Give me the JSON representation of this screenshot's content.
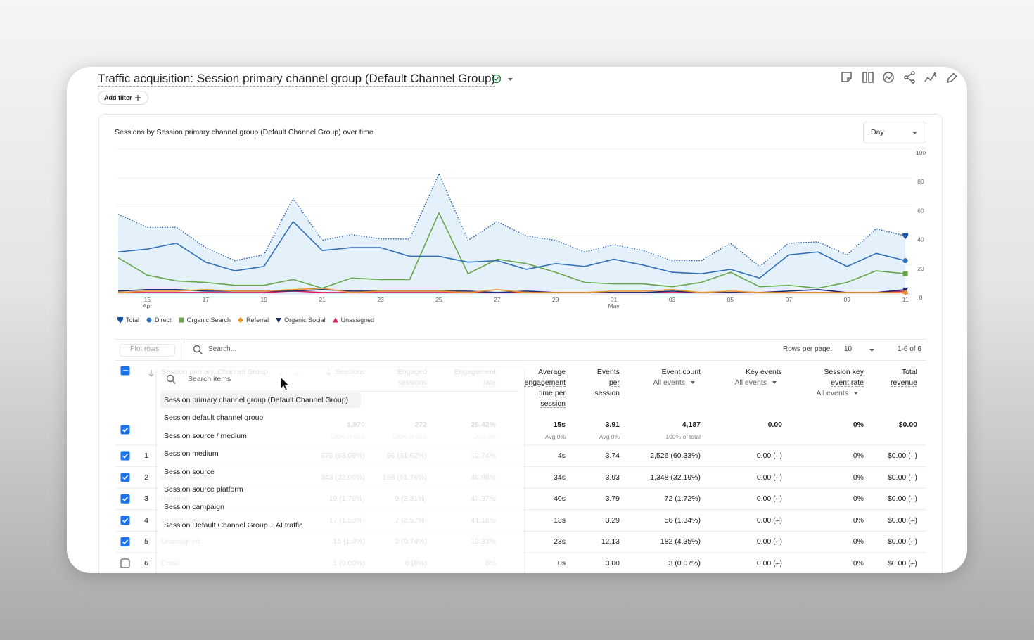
{
  "header": {
    "title": "Traffic acquisition: Session primary channel group (Default Channel Group)",
    "add_filter": "Add filter"
  },
  "period_select": "Day",
  "chart_data": {
    "type": "line",
    "title": "Sessions by Session primary channel group (Default Channel Group) over time",
    "categories": [
      null,
      "15\nApr",
      null,
      "17",
      null,
      "19",
      null,
      "21",
      null,
      "23",
      null,
      "25",
      null,
      "27",
      null,
      "29",
      null,
      "01\nMay",
      null,
      "03",
      null,
      "05",
      null,
      "07",
      null,
      "09",
      null,
      "11"
    ],
    "series": [
      {
        "name": "Total",
        "color": "#1a56a8",
        "line_style": "dotted",
        "area_color": "#dcecf8",
        "marker": "shield",
        "values": [
          55,
          46,
          46,
          32,
          23,
          27,
          66,
          37,
          41,
          38,
          38,
          83,
          37,
          50,
          40,
          37,
          29,
          34,
          30,
          23,
          23,
          35,
          19,
          35,
          36,
          27,
          45,
          40
        ]
      },
      {
        "name": "Direct",
        "color": "#2f6fb7",
        "line_style": "solid",
        "marker": "circle",
        "values": [
          29,
          31,
          35,
          22,
          16,
          19,
          50,
          30,
          32,
          32,
          26,
          26,
          22,
          23,
          17,
          21,
          19,
          24,
          20,
          15,
          14,
          17,
          11,
          27,
          29,
          19,
          28,
          23
        ]
      },
      {
        "name": "Organic Search",
        "color": "#67a54a",
        "line_style": "solid",
        "marker": "square",
        "values": [
          25,
          13,
          9,
          8,
          6,
          6,
          10,
          4,
          11,
          10,
          10,
          56,
          14,
          24,
          21,
          15,
          8,
          7,
          7,
          5,
          8,
          15,
          5,
          6,
          4,
          8,
          16,
          14
        ]
      },
      {
        "name": "Referral",
        "color": "#e8912d",
        "line_style": "solid",
        "marker": "diamond",
        "values": [
          1,
          2,
          2,
          3,
          2,
          2,
          3,
          4,
          1,
          2,
          2,
          2,
          1,
          3,
          1,
          1,
          1,
          2,
          2,
          3,
          1,
          2,
          1,
          1,
          1,
          1,
          1,
          1
        ]
      },
      {
        "name": "Organic Social",
        "color": "#1c2a6b",
        "line_style": "solid",
        "marker": "triangle-down",
        "values": [
          2,
          3,
          3,
          2,
          2,
          2,
          2,
          3,
          2,
          2,
          2,
          2,
          2,
          1,
          2,
          1,
          1,
          1,
          1,
          2,
          1,
          1,
          1,
          2,
          3,
          1,
          1,
          3
        ]
      },
      {
        "name": "Unassigned",
        "color": "#d81b60",
        "line_style": "solid",
        "marker": "triangle-up",
        "values": [
          1,
          1,
          1,
          1,
          1,
          1,
          2,
          1,
          1,
          1,
          1,
          1,
          1,
          1,
          1,
          1,
          1,
          1,
          1,
          1,
          1,
          1,
          1,
          1,
          1,
          1,
          1,
          2
        ]
      }
    ],
    "ylim": [
      0,
      100
    ],
    "yticks": [
      0,
      20,
      40,
      60,
      80,
      100
    ],
    "grid": true,
    "y_axis_side": "right",
    "legend": "bottom-left"
  },
  "table": {
    "controls": {
      "plot_rows": "Plot rows",
      "search": "Search...",
      "rows_per_page_label": "Rows per page:",
      "rows_per_page": "10",
      "range": "1-6 of 6"
    },
    "columns": [
      {
        "label": "Session primary..Channel Group"
      },
      {
        "label": "Sessions"
      },
      {
        "label": "Engaged sessions"
      },
      {
        "label": "Engagement rate"
      },
      {
        "label": "Average engagement time per session"
      },
      {
        "label": "Events per session"
      },
      {
        "label": "Event count",
        "filter": "All events"
      },
      {
        "label": "Key events",
        "filter": "All events"
      },
      {
        "label": "Session key event rate",
        "filter": "All events"
      },
      {
        "label": "Total revenue"
      }
    ],
    "totals": {
      "label": "Total",
      "checked": true,
      "cells": [
        {
          "value": "1,070",
          "note": "100% of total"
        },
        {
          "value": "272",
          "note": "100% of total"
        },
        {
          "value": "25.42%",
          "note": "Avg 0%"
        },
        {
          "value": "15s",
          "note": "Avg 0%"
        },
        {
          "value": "3.91",
          "note": "Avg 0%"
        },
        {
          "value": "4,187",
          "note": "100% of total"
        },
        {
          "value": "0.00"
        },
        {
          "value": "0%"
        },
        {
          "value": "$0.00"
        }
      ]
    },
    "rows": [
      {
        "index": 1,
        "checked": true,
        "cells": [
          "Direct",
          "675 (63.08%)",
          "86 (31.62%)",
          "12.74%",
          "4s",
          "3.74",
          "2,526 (60.33%)",
          "0.00 (–)",
          "0%",
          "$0.00 (–)"
        ]
      },
      {
        "index": 2,
        "checked": true,
        "cells": [
          "Organic Search",
          "343 (32.06%)",
          "168 (61.76%)",
          "48.98%",
          "34s",
          "3.93",
          "1,348 (32.19%)",
          "0.00 (–)",
          "0%",
          "$0.00 (–)"
        ]
      },
      {
        "index": 3,
        "checked": true,
        "cells": [
          "Referral",
          "19 (1.78%)",
          "9 (3.31%)",
          "47.37%",
          "40s",
          "3.79",
          "72 (1.72%)",
          "0.00 (–)",
          "0%",
          "$0.00 (–)"
        ]
      },
      {
        "index": 4,
        "checked": true,
        "cells": [
          "Organic Social",
          "17 (1.59%)",
          "7 (2.57%)",
          "41.18%",
          "13s",
          "3.29",
          "56 (1.34%)",
          "0.00 (–)",
          "0%",
          "$0.00 (–)"
        ]
      },
      {
        "index": 5,
        "checked": true,
        "cells": [
          "Unassigned",
          "15 (1.4%)",
          "2 (0.74%)",
          "13.33%",
          "23s",
          "12.13",
          "182 (4.35%)",
          "0.00 (–)",
          "0%",
          "$0.00 (–)"
        ]
      },
      {
        "index": 6,
        "checked": false,
        "cells": [
          "Email",
          "1 (0.09%)",
          "0 (0%)",
          "0%",
          "0s",
          "3.00",
          "3 (0.07%)",
          "0.00 (–)",
          "0%",
          "$0.00 (–)"
        ]
      }
    ]
  },
  "dimension_menu": {
    "search_placeholder": "Search items",
    "selected": 0,
    "options": [
      "Session primary channel group (Default Channel Group)",
      "Session default channel group",
      "Session source / medium",
      "Session medium",
      "Session source",
      "Session source platform",
      "Session campaign",
      "Session Default Channel Group + AI traffic"
    ]
  }
}
